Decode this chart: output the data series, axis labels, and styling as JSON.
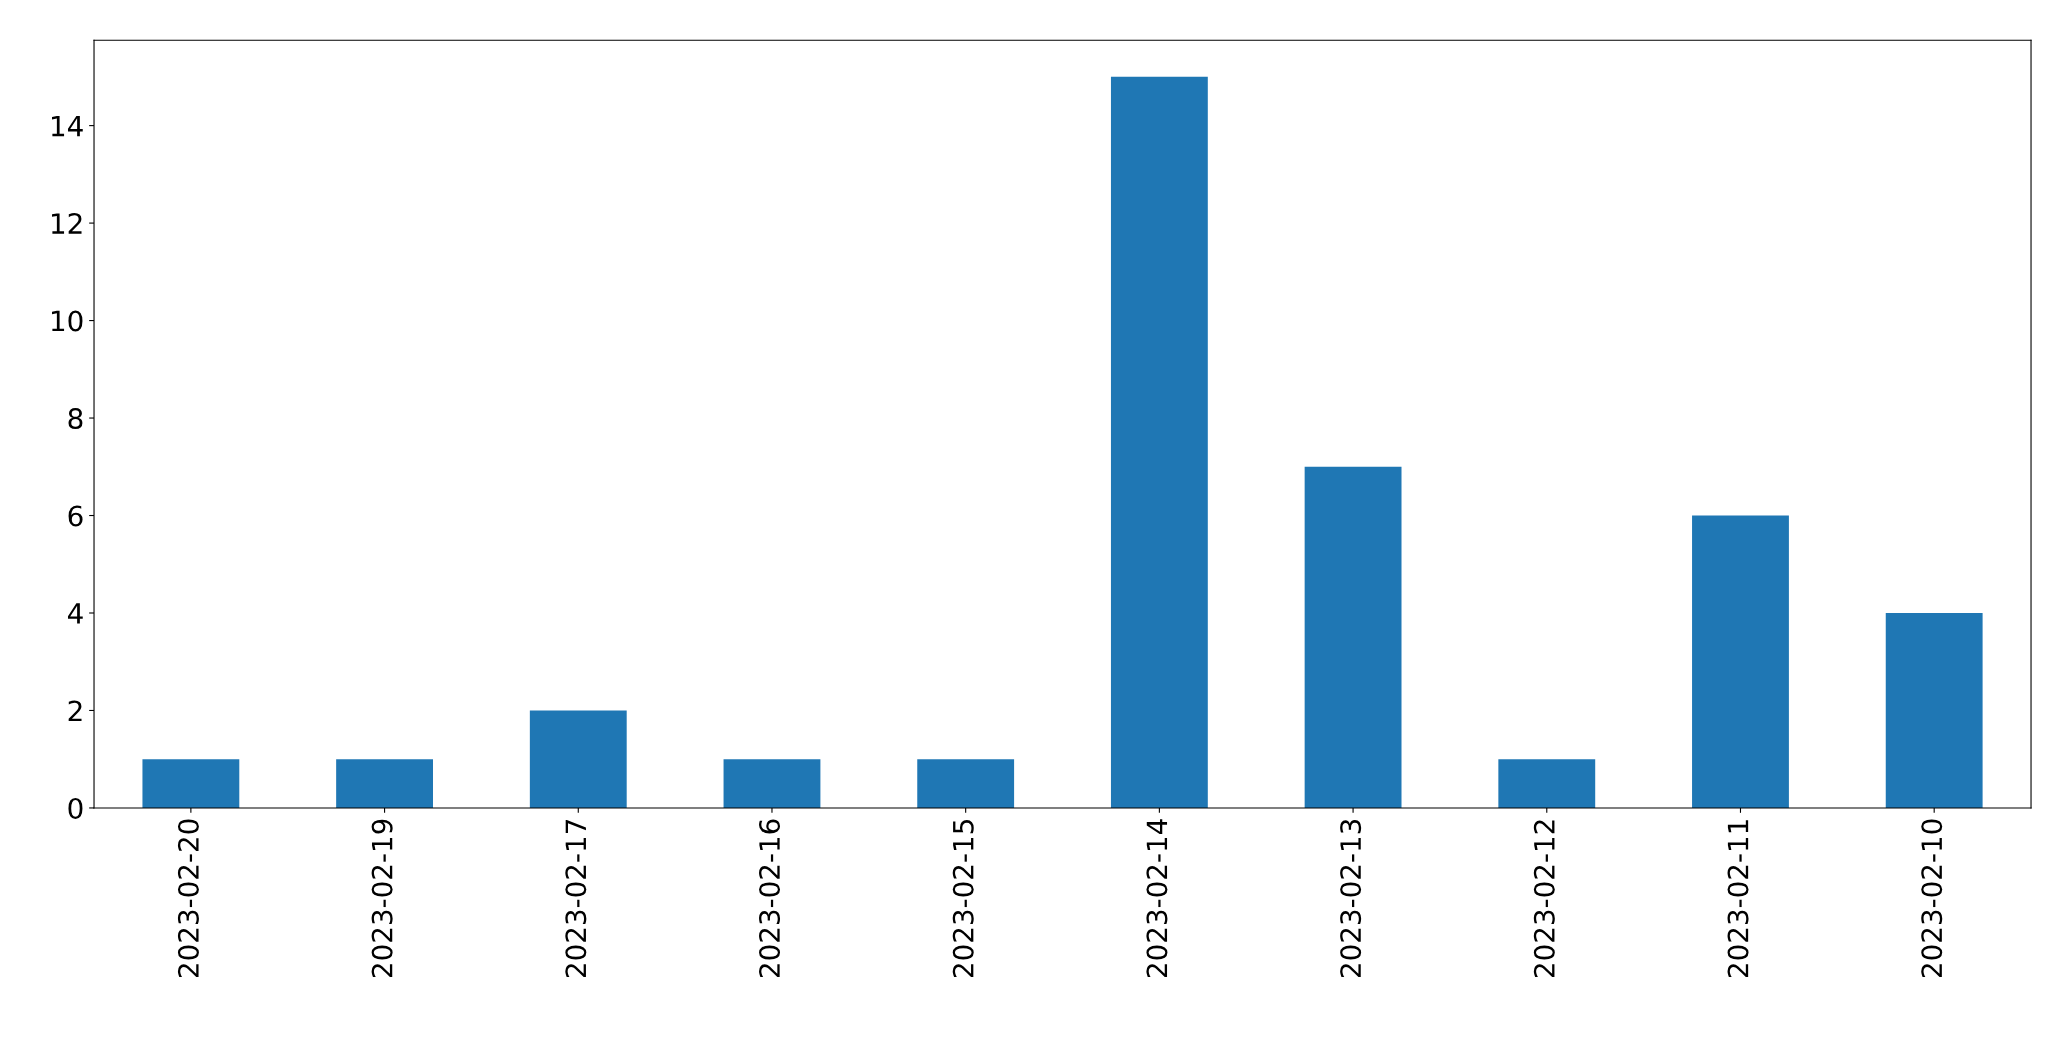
{
  "chart_data": {
    "type": "bar",
    "categories": [
      "2023-02-20",
      "2023-02-19",
      "2023-02-17",
      "2023-02-16",
      "2023-02-15",
      "2023-02-14",
      "2023-02-13",
      "2023-02-12",
      "2023-02-11",
      "2023-02-10"
    ],
    "values": [
      1,
      1,
      2,
      1,
      1,
      15,
      7,
      1,
      6,
      4
    ],
    "color": "#1f77b4",
    "ylim": [
      0,
      15.75
    ],
    "yticks": [
      0,
      2,
      4,
      6,
      8,
      10,
      12,
      14
    ],
    "grid": false,
    "legend": false
  }
}
